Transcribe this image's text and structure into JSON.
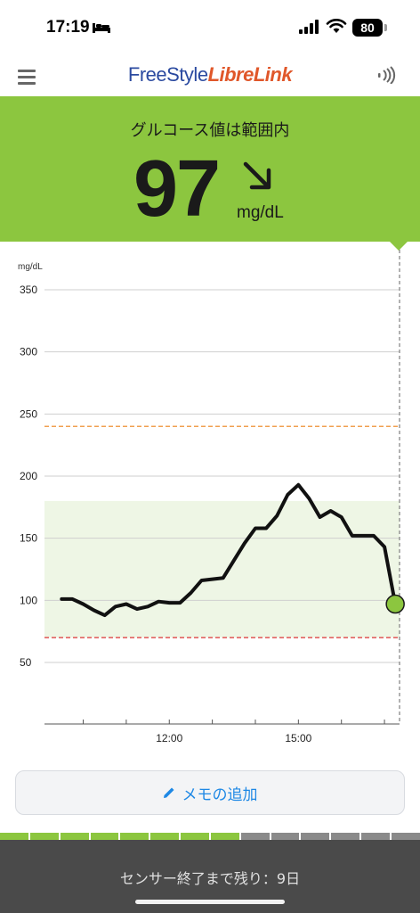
{
  "status_bar": {
    "time": "17:19",
    "battery": "80"
  },
  "app": {
    "brand_part1": "FreeStyle",
    "brand_part2": "LibreLink"
  },
  "glucose": {
    "status": "グルコース値は範囲内",
    "value": "97",
    "unit": "mg/dL",
    "trend": "arrow-down-right-icon",
    "banner_color": "#8cc63f"
  },
  "chart_data": {
    "type": "line",
    "ylabel": "mg/dL",
    "ylim": [
      0,
      370
    ],
    "yticks": [
      50,
      100,
      150,
      200,
      250,
      300,
      350
    ],
    "x_tick_labels": [
      "12:00",
      "15:00"
    ],
    "target_range": [
      70,
      180
    ],
    "high_threshold": 240,
    "low_threshold": 70,
    "x_hours": [
      9.5,
      9.75,
      10.0,
      10.25,
      10.5,
      10.75,
      11.0,
      11.25,
      11.5,
      11.75,
      12.0,
      12.25,
      12.5,
      12.75,
      13.0,
      13.25,
      13.5,
      13.75,
      14.0,
      14.25,
      14.5,
      14.75,
      15.0,
      15.25,
      15.5,
      15.75,
      16.0,
      16.25,
      16.5,
      16.75,
      17.0,
      17.25
    ],
    "values": [
      101,
      101,
      97,
      92,
      88,
      95,
      97,
      93,
      95,
      99,
      98,
      98,
      106,
      116,
      117,
      118,
      132,
      146,
      158,
      158,
      168,
      185,
      193,
      182,
      167,
      172,
      167,
      152,
      152,
      152,
      143,
      97
    ],
    "current_value": 97,
    "colors": {
      "line": "#111111",
      "range_fill": "#eef6e5",
      "high_line": "#f0a050",
      "low_line": "#e05555",
      "current_dot": "#8cc63f"
    }
  },
  "memo": {
    "label": "メモの追加"
  },
  "sensor": {
    "remaining": "センサー終了まで残り：9日",
    "elapsed_segments": 8,
    "total_segments": 14
  }
}
